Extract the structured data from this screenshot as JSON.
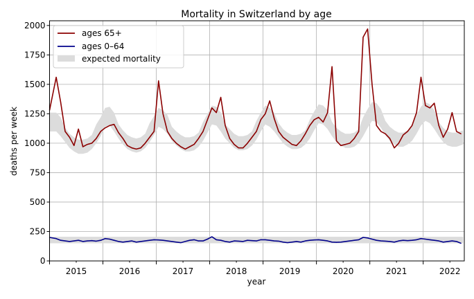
{
  "chart_data": {
    "type": "line",
    "title": "Mortality in Switzerland by age",
    "xlabel": "year",
    "ylabel": "deaths per week",
    "xlim": [
      2015.0,
      2022.77
    ],
    "ylim": [
      0,
      2040
    ],
    "grid": true,
    "legend_placement": "top-left",
    "x_tick_labels": [
      "2015",
      "2016",
      "2017",
      "2018",
      "2019",
      "2020",
      "2021",
      "2022"
    ],
    "y_ticks": [
      0,
      250,
      500,
      750,
      1000,
      1250,
      1500,
      1750,
      2000
    ],
    "start_month": "2015-01",
    "series": [
      {
        "name": "ages 65+",
        "color": "#8b0000",
        "values": [
          1280,
          1560,
          1350,
          1100,
          1050,
          980,
          1120,
          970,
          990,
          1000,
          1040,
          1100,
          1130,
          1150,
          1160,
          1090,
          1040,
          980,
          960,
          950,
          960,
          1000,
          1050,
          1100,
          1530,
          1250,
          1100,
          1040,
          1000,
          970,
          950,
          970,
          990,
          1040,
          1100,
          1200,
          1300,
          1260,
          1390,
          1150,
          1040,
          990,
          960,
          960,
          1000,
          1050,
          1100,
          1200,
          1250,
          1360,
          1210,
          1100,
          1050,
          1020,
          990,
          980,
          1020,
          1080,
          1150,
          1200,
          1220,
          1180,
          1260,
          1650,
          1020,
          980,
          990,
          1000,
          1040,
          1100,
          1900,
          1970,
          1500,
          1150,
          1100,
          1080,
          1040,
          960,
          1000,
          1070,
          1100,
          1150,
          1260,
          1560,
          1320,
          1300,
          1340,
          1150,
          1050,
          1120,
          1260,
          1100,
          1080
        ]
      },
      {
        "name": "ages 0–64",
        "color": "#00008b",
        "values": [
          200,
          190,
          175,
          170,
          165,
          170,
          175,
          165,
          170,
          172,
          168,
          175,
          190,
          185,
          175,
          165,
          160,
          165,
          170,
          160,
          165,
          170,
          175,
          180,
          178,
          175,
          170,
          165,
          160,
          155,
          165,
          175,
          180,
          170,
          170,
          185,
          205,
          180,
          175,
          165,
          160,
          170,
          168,
          165,
          175,
          172,
          170,
          180,
          180,
          175,
          170,
          168,
          160,
          155,
          160,
          165,
          160,
          170,
          175,
          178,
          180,
          175,
          170,
          160,
          158,
          160,
          165,
          170,
          175,
          180,
          200,
          195,
          185,
          175,
          170,
          168,
          165,
          160,
          170,
          175,
          172,
          175,
          180,
          190,
          185,
          180,
          175,
          170,
          160,
          165,
          170,
          165,
          150
        ]
      }
    ],
    "bands": [
      {
        "name": "expected mortality",
        "color": "#dcdcdc",
        "lower": [
          1100,
          1100,
          1060,
          1010,
          960,
          930,
          910,
          910,
          920,
          950,
          1000,
          1060,
          1140,
          1150,
          1100,
          1040,
          990,
          950,
          930,
          920,
          930,
          960,
          1010,
          1070,
          1140,
          1120,
          1080,
          1020,
          980,
          950,
          930,
          930,
          940,
          970,
          1020,
          1090,
          1160,
          1150,
          1100,
          1040,
          1000,
          960,
          940,
          940,
          950,
          980,
          1030,
          1100,
          1160,
          1140,
          1100,
          1050,
          1000,
          970,
          950,
          950,
          960,
          990,
          1040,
          1110,
          1170,
          1160,
          1120,
          1060,
          1010,
          980,
          960,
          960,
          970,
          1000,
          1060,
          1130,
          1190,
          1180,
          1130,
          1070,
          1020,
          990,
          970,
          970,
          990,
          1020,
          1080,
          1150,
          1190,
          1170,
          1120,
          1060,
          1010,
          980,
          970,
          970,
          990
        ],
        "upper": [
          1260,
          1260,
          1220,
          1130,
          1080,
          1050,
          1030,
          1030,
          1040,
          1070,
          1160,
          1220,
          1300,
          1310,
          1260,
          1160,
          1110,
          1070,
          1050,
          1040,
          1050,
          1080,
          1170,
          1230,
          1300,
          1280,
          1240,
          1140,
          1100,
          1070,
          1050,
          1050,
          1060,
          1090,
          1180,
          1250,
          1320,
          1310,
          1260,
          1160,
          1120,
          1080,
          1060,
          1060,
          1070,
          1100,
          1190,
          1260,
          1320,
          1300,
          1260,
          1170,
          1120,
          1090,
          1070,
          1070,
          1080,
          1110,
          1200,
          1270,
          1330,
          1320,
          1280,
          1180,
          1130,
          1100,
          1080,
          1080,
          1090,
          1120,
          1220,
          1290,
          1350,
          1340,
          1290,
          1190,
          1140,
          1110,
          1090,
          1090,
          1110,
          1140,
          1240,
          1310,
          1350,
          1330,
          1280,
          1180,
          1130,
          1100,
          1090,
          1090,
          1110
        ]
      },
      {
        "name": "",
        "color": "#dcdcdc",
        "lower": [
          150
        ],
        "upper": [
          205
        ]
      }
    ]
  }
}
